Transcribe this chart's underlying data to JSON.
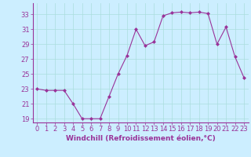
{
  "x": [
    0,
    1,
    2,
    3,
    4,
    5,
    6,
    7,
    8,
    9,
    10,
    11,
    12,
    13,
    14,
    15,
    16,
    17,
    18,
    19,
    20,
    21,
    22,
    23
  ],
  "y": [
    23,
    22.8,
    22.8,
    22.8,
    21,
    19,
    19,
    19,
    22,
    25,
    27.5,
    31,
    28.8,
    29.3,
    32.8,
    33.2,
    33.3,
    33.2,
    33.3,
    33.1,
    29,
    31.3,
    27.3,
    24.5
  ],
  "line_color": "#993399",
  "marker": "D",
  "marker_size": 2.0,
  "bg_color": "#cceeff",
  "grid_color": "#aadddd",
  "xlabel": "Windchill (Refroidissement éolien,°C)",
  "ylim": [
    18.5,
    34.5
  ],
  "xlim": [
    -0.5,
    23.5
  ],
  "yticks": [
    19,
    21,
    23,
    25,
    27,
    29,
    31,
    33
  ],
  "xticks": [
    0,
    1,
    2,
    3,
    4,
    5,
    6,
    7,
    8,
    9,
    10,
    11,
    12,
    13,
    14,
    15,
    16,
    17,
    18,
    19,
    20,
    21,
    22,
    23
  ],
  "tick_color": "#993399",
  "label_fontsize": 6.5,
  "tick_fontsize": 6.0,
  "linewidth": 0.8
}
